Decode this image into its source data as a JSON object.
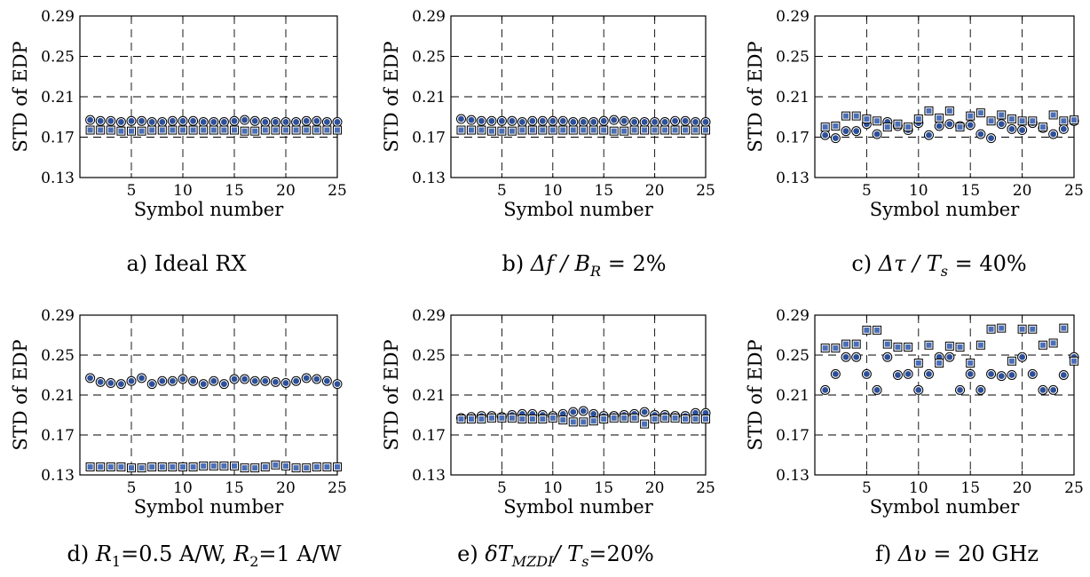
{
  "chart_data": [
    {
      "type": "scatter",
      "caption": "a) Ideal RX",
      "xlabel": "Symbol number",
      "ylabel": "STD of EDP",
      "xlim": [
        0,
        25
      ],
      "ylim": [
        0.13,
        0.29
      ],
      "xticks": [
        "5",
        "10",
        "15",
        "20",
        "25"
      ],
      "yticks": [
        "0.13",
        "0.17",
        "0.21",
        "0.25",
        "0.29"
      ],
      "grid": true,
      "x": [
        1,
        2,
        3,
        4,
        5,
        6,
        7,
        8,
        9,
        10,
        11,
        12,
        13,
        14,
        15,
        16,
        17,
        18,
        19,
        20,
        21,
        22,
        23,
        24,
        25
      ],
      "series": [
        {
          "marker": "circle",
          "values": [
            0.187,
            0.186,
            0.186,
            0.185,
            0.186,
            0.186,
            0.185,
            0.185,
            0.186,
            0.186,
            0.186,
            0.185,
            0.185,
            0.185,
            0.186,
            0.187,
            0.186,
            0.185,
            0.185,
            0.185,
            0.185,
            0.186,
            0.186,
            0.185,
            0.185
          ]
        },
        {
          "marker": "square",
          "values": [
            0.177,
            0.177,
            0.177,
            0.176,
            0.176,
            0.176,
            0.177,
            0.177,
            0.177,
            0.177,
            0.177,
            0.177,
            0.177,
            0.177,
            0.177,
            0.176,
            0.176,
            0.177,
            0.177,
            0.177,
            0.177,
            0.177,
            0.177,
            0.177,
            0.177
          ]
        }
      ]
    },
    {
      "type": "scatter",
      "caption": {
        "pre": "b) ",
        "math": "Δf / B",
        "sub": "R",
        "post": " = 2%"
      },
      "xlabel": "Symbol number",
      "ylabel": "STD of EDP",
      "xlim": [
        0,
        25
      ],
      "ylim": [
        0.13,
        0.29
      ],
      "xticks": [
        "5",
        "10",
        "15",
        "20",
        "25"
      ],
      "yticks": [
        "0.13",
        "0.17",
        "0.21",
        "0.25",
        "0.29"
      ],
      "grid": true,
      "x": [
        1,
        2,
        3,
        4,
        5,
        6,
        7,
        8,
        9,
        10,
        11,
        12,
        13,
        14,
        15,
        16,
        17,
        18,
        19,
        20,
        21,
        22,
        23,
        24,
        25
      ],
      "series": [
        {
          "marker": "circle",
          "values": [
            0.188,
            0.187,
            0.186,
            0.186,
            0.186,
            0.186,
            0.185,
            0.186,
            0.186,
            0.186,
            0.186,
            0.185,
            0.185,
            0.185,
            0.186,
            0.187,
            0.186,
            0.185,
            0.185,
            0.185,
            0.185,
            0.186,
            0.186,
            0.185,
            0.185
          ]
        },
        {
          "marker": "square",
          "values": [
            0.177,
            0.177,
            0.177,
            0.176,
            0.176,
            0.176,
            0.177,
            0.177,
            0.177,
            0.177,
            0.177,
            0.177,
            0.177,
            0.177,
            0.177,
            0.176,
            0.176,
            0.177,
            0.177,
            0.177,
            0.177,
            0.177,
            0.177,
            0.177,
            0.177
          ]
        }
      ]
    },
    {
      "type": "scatter",
      "caption": {
        "pre": "c) ",
        "math": "Δτ / T",
        "sub": "s",
        "post": " = 40%"
      },
      "xlabel": "Symbol number",
      "ylabel": "STD of EDP",
      "xlim": [
        0,
        25
      ],
      "ylim": [
        0.13,
        0.29
      ],
      "xticks": [
        "5",
        "10",
        "15",
        "20",
        "25"
      ],
      "yticks": [
        "0.13",
        "0.17",
        "0.21",
        "0.25",
        "0.29"
      ],
      "grid": true,
      "x": [
        1,
        2,
        3,
        4,
        5,
        6,
        7,
        8,
        9,
        10,
        11,
        12,
        13,
        14,
        15,
        16,
        17,
        18,
        19,
        20,
        21,
        22,
        23,
        24,
        25
      ],
      "series": [
        {
          "marker": "circle",
          "values": [
            0.172,
            0.169,
            0.176,
            0.176,
            0.183,
            0.173,
            0.185,
            0.181,
            0.177,
            0.184,
            0.172,
            0.181,
            0.183,
            0.181,
            0.182,
            0.173,
            0.169,
            0.183,
            0.178,
            0.177,
            0.184,
            0.179,
            0.173,
            0.178,
            0.186
          ]
        },
        {
          "marker": "square",
          "values": [
            0.18,
            0.181,
            0.191,
            0.191,
            0.188,
            0.186,
            0.18,
            0.183,
            0.18,
            0.188,
            0.196,
            0.189,
            0.196,
            0.18,
            0.191,
            0.194,
            0.186,
            0.192,
            0.188,
            0.186,
            0.186,
            0.18,
            0.192,
            0.186,
            0.187
          ]
        }
      ]
    },
    {
      "type": "scatter",
      "caption": {
        "pre": "d) ",
        "r1": "R",
        "r1sub": "1",
        "mid": "=0.5 A/W, ",
        "r2": "R",
        "r2sub": "2",
        "post": "=1 A/W"
      },
      "xlabel": "Symbol number",
      "ylabel": "STD of EDP",
      "xlim": [
        0,
        25
      ],
      "ylim": [
        0.13,
        0.29
      ],
      "xticks": [
        "5",
        "10",
        "15",
        "20",
        "25"
      ],
      "yticks": [
        "0.13",
        "0.17",
        "0.21",
        "0.25",
        "0.29"
      ],
      "grid": true,
      "x": [
        1,
        2,
        3,
        4,
        5,
        6,
        7,
        8,
        9,
        10,
        11,
        12,
        13,
        14,
        15,
        16,
        17,
        18,
        19,
        20,
        21,
        22,
        23,
        24,
        25
      ],
      "series": [
        {
          "marker": "circle",
          "values": [
            0.227,
            0.223,
            0.222,
            0.221,
            0.224,
            0.227,
            0.221,
            0.224,
            0.224,
            0.226,
            0.224,
            0.221,
            0.224,
            0.221,
            0.226,
            0.226,
            0.224,
            0.224,
            0.223,
            0.222,
            0.224,
            0.227,
            0.226,
            0.224,
            0.221
          ]
        },
        {
          "marker": "square",
          "values": [
            0.138,
            0.138,
            0.138,
            0.138,
            0.137,
            0.137,
            0.138,
            0.138,
            0.138,
            0.138,
            0.138,
            0.139,
            0.139,
            0.139,
            0.139,
            0.137,
            0.137,
            0.138,
            0.14,
            0.139,
            0.137,
            0.137,
            0.138,
            0.138,
            0.138
          ]
        }
      ]
    },
    {
      "type": "scatter",
      "caption": {
        "pre": "e) ",
        "math": "δT",
        "sub": "MZDI",
        "math2": "/ T",
        "sub2": "s",
        "post": "=20%"
      },
      "xlabel": "Symbol number",
      "ylabel": "STD of EDP",
      "xlim": [
        0,
        25
      ],
      "ylim": [
        0.13,
        0.29
      ],
      "xticks": [
        "5",
        "10",
        "15",
        "20",
        "25"
      ],
      "yticks": [
        "0.13",
        "0.17",
        "0.21",
        "0.25",
        "0.29"
      ],
      "grid": true,
      "x": [
        1,
        2,
        3,
        4,
        5,
        6,
        7,
        8,
        9,
        10,
        11,
        12,
        13,
        14,
        15,
        16,
        17,
        18,
        19,
        20,
        21,
        22,
        23,
        24,
        25
      ],
      "series": [
        {
          "marker": "circle",
          "values": [
            0.187,
            0.188,
            0.189,
            0.189,
            0.188,
            0.19,
            0.191,
            0.191,
            0.19,
            0.189,
            0.191,
            0.193,
            0.194,
            0.191,
            0.189,
            0.189,
            0.19,
            0.191,
            0.193,
            0.19,
            0.19,
            0.189,
            0.189,
            0.192,
            0.192
          ]
        },
        {
          "marker": "square",
          "values": [
            0.186,
            0.186,
            0.186,
            0.187,
            0.187,
            0.187,
            0.186,
            0.186,
            0.186,
            0.187,
            0.185,
            0.183,
            0.183,
            0.184,
            0.186,
            0.187,
            0.187,
            0.187,
            0.181,
            0.186,
            0.187,
            0.187,
            0.186,
            0.186,
            0.186
          ]
        }
      ]
    },
    {
      "type": "scatter",
      "caption": {
        "pre": "f) ",
        "math": "Δυ",
        "post": " = 20 GHz"
      },
      "xlabel": "Symbol number",
      "ylabel": "STD of EDP",
      "xlim": [
        0,
        25
      ],
      "ylim": [
        0.13,
        0.29
      ],
      "xticks": [
        "5",
        "10",
        "15",
        "20",
        "25"
      ],
      "yticks": [
        "0.13",
        "0.17",
        "0.21",
        "0.25",
        "0.29"
      ],
      "grid": true,
      "x": [
        1,
        2,
        3,
        4,
        5,
        6,
        7,
        8,
        9,
        10,
        11,
        12,
        13,
        14,
        15,
        16,
        17,
        18,
        19,
        20,
        21,
        22,
        23,
        24,
        25
      ],
      "series": [
        {
          "marker": "circle",
          "values": [
            0.215,
            0.231,
            0.248,
            0.248,
            0.231,
            0.215,
            0.248,
            0.23,
            0.231,
            0.215,
            0.231,
            0.248,
            0.248,
            0.215,
            0.231,
            0.215,
            0.231,
            0.229,
            0.23,
            0.248,
            0.231,
            0.215,
            0.215,
            0.23,
            0.248
          ]
        },
        {
          "marker": "square",
          "values": [
            0.257,
            0.257,
            0.261,
            0.261,
            0.275,
            0.275,
            0.261,
            0.258,
            0.258,
            0.242,
            0.26,
            0.242,
            0.259,
            0.258,
            0.242,
            0.26,
            0.276,
            0.277,
            0.244,
            0.276,
            0.276,
            0.26,
            0.262,
            0.277,
            0.244
          ]
        }
      ]
    }
  ],
  "colors": {
    "marker_fill": "#2c4f9a",
    "marker_fill_light": "#4a6fb8",
    "frame": "#000000",
    "grid": "#000000"
  }
}
